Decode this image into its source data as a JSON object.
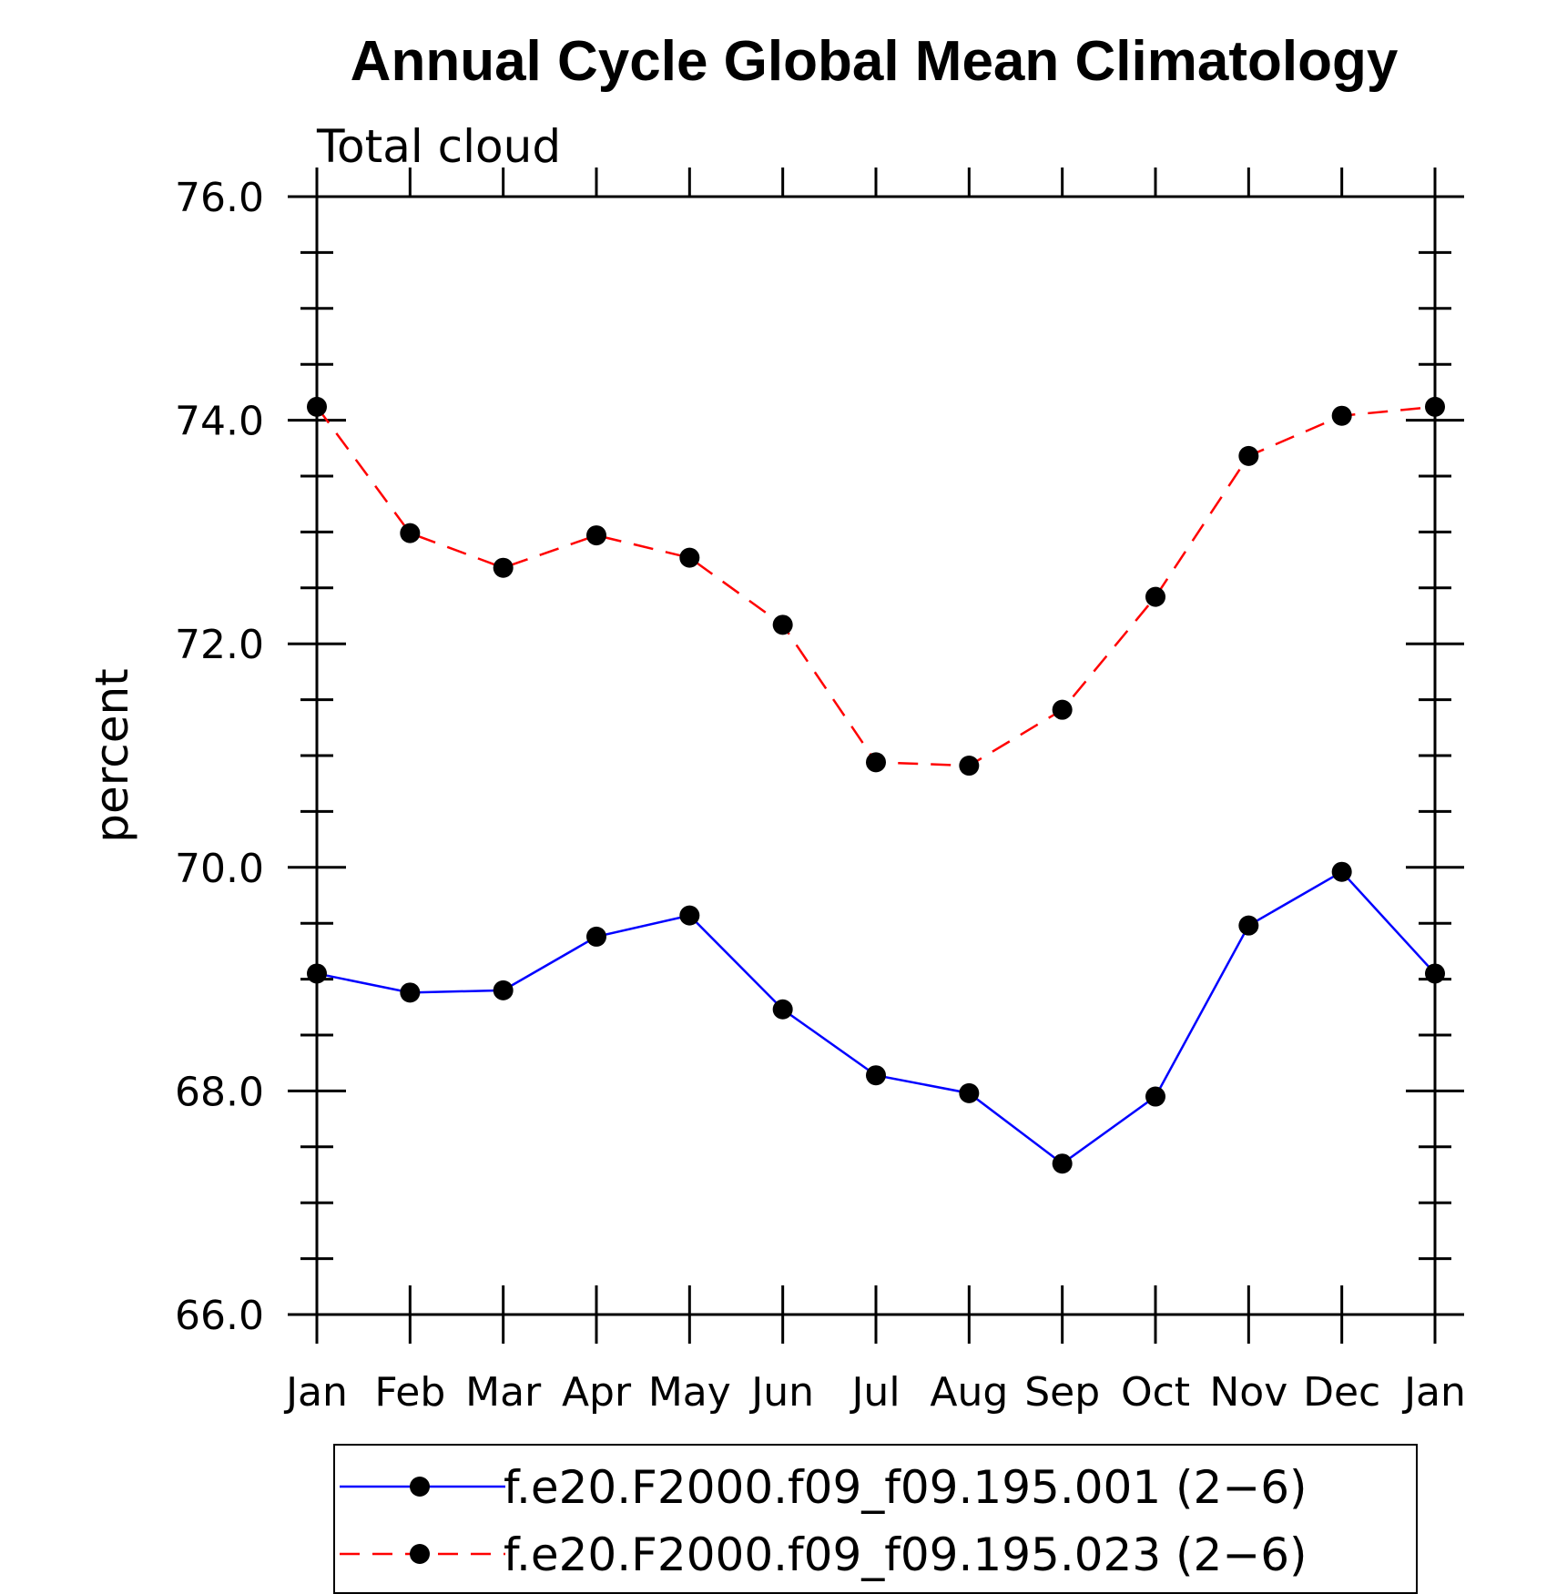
{
  "chart_data": {
    "type": "line",
    "title": "Annual Cycle Global Mean Climatology",
    "subtitle": "Total cloud",
    "ylabel": "percent",
    "xlabel": "",
    "categories": [
      "Jan",
      "Feb",
      "Mar",
      "Apr",
      "May",
      "Jun",
      "Jul",
      "Aug",
      "Sep",
      "Oct",
      "Nov",
      "Dec",
      "Jan"
    ],
    "ylim": [
      66.0,
      76.0
    ],
    "yticks": [
      "66.0",
      "68.0",
      "70.0",
      "72.0",
      "74.0",
      "76.0"
    ],
    "grid": false,
    "legend_position": "bottom",
    "series": [
      {
        "name": "f.e20.F2000.f09_f09.195.001 (2−6)",
        "color": "#0000ff",
        "line_style": "solid",
        "marker": "filled-circle",
        "values": [
          69.05,
          68.88,
          68.9,
          69.38,
          69.57,
          68.73,
          68.14,
          67.98,
          67.35,
          67.95,
          69.48,
          69.96,
          69.05
        ]
      },
      {
        "name": "f.e20.F2000.f09_f09.195.023 (2−6)",
        "color": "#ff0000",
        "line_style": "dashed",
        "marker": "filled-circle",
        "values": [
          74.12,
          72.99,
          72.68,
          72.97,
          72.77,
          72.17,
          70.94,
          70.91,
          71.41,
          72.42,
          73.68,
          74.04,
          74.12
        ]
      }
    ]
  }
}
